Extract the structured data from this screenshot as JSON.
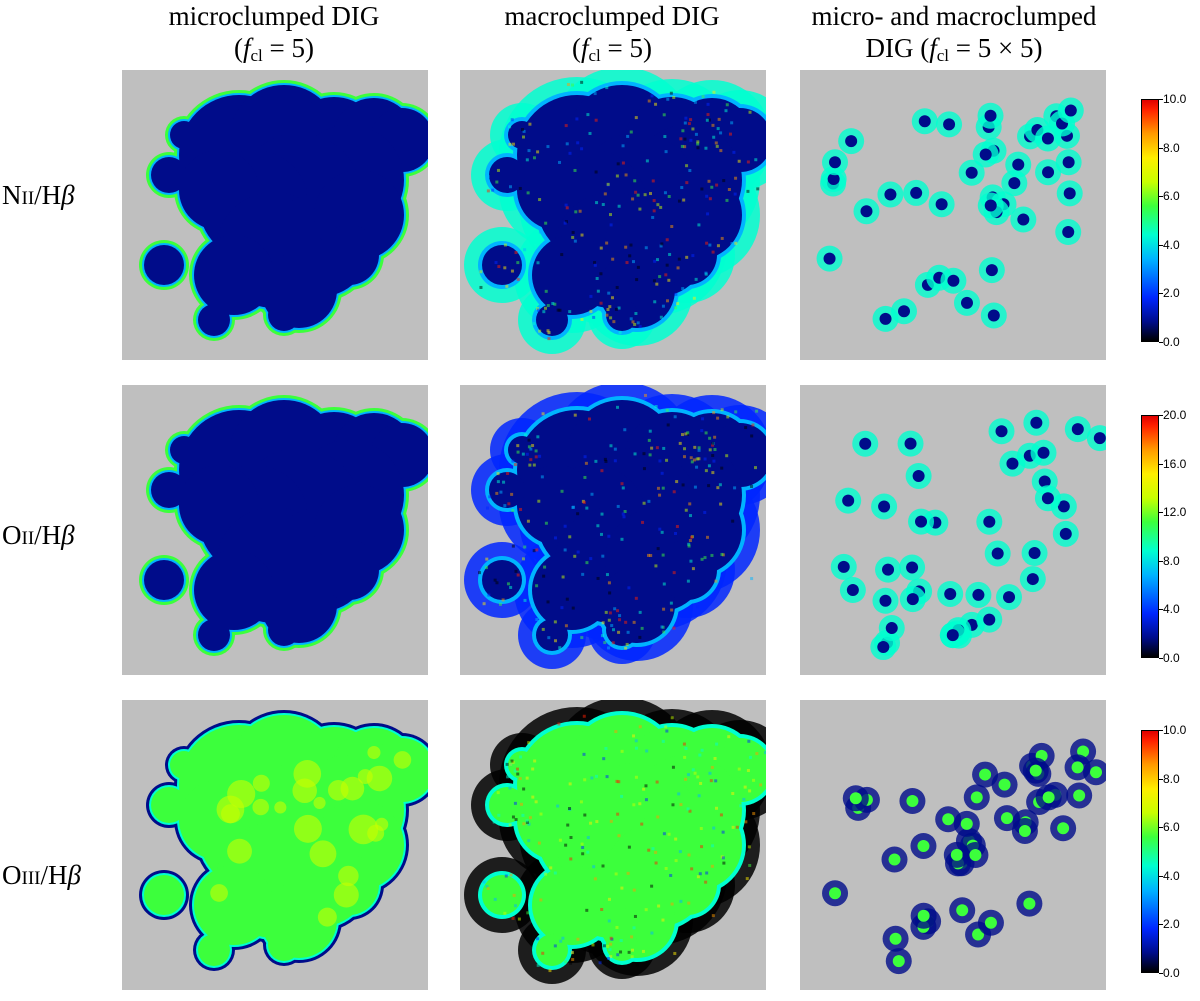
{
  "columns": [
    {
      "line1": "microclumped DIG",
      "f_symbol": "f",
      "f_sub": "cl",
      "f_value": "= 5)",
      "prefix": "("
    },
    {
      "line1": "macroclumped DIG",
      "f_symbol": "f",
      "f_sub": "cl",
      "f_value": "= 5)",
      "prefix": "("
    },
    {
      "line1": "micro- and macroclumped",
      "prefix": "DIG (",
      "f_symbol": "f",
      "f_sub": "cl",
      "f_value": "= 5 × 5)"
    }
  ],
  "rows": [
    {
      "element": "N",
      "ion": "II",
      "ratio": "/H",
      "beta": "β"
    },
    {
      "element": "O",
      "ion": "II",
      "ratio": "/H",
      "beta": "β"
    },
    {
      "element": "O",
      "ion": "III",
      "ratio": "/H",
      "beta": "β"
    }
  ],
  "colorbars": [
    {
      "ticks": [
        "10.0",
        "8.0",
        "6.0",
        "4.0",
        "2.0",
        "0.0"
      ]
    },
    {
      "ticks": [
        "20.0",
        "16.0",
        "12.0",
        "8.0",
        "4.0",
        "0.0"
      ]
    },
    {
      "ticks": [
        "10.0",
        "8.0",
        "6.0",
        "4.0",
        "2.0",
        "0.0"
      ]
    }
  ],
  "colormap": [
    "#000000",
    "#0026ff",
    "#00b4ff",
    "#00ffd0",
    "#3cff3c",
    "#c8ff00",
    "#ffee00",
    "#ff9a00",
    "#ff2000"
  ]
}
